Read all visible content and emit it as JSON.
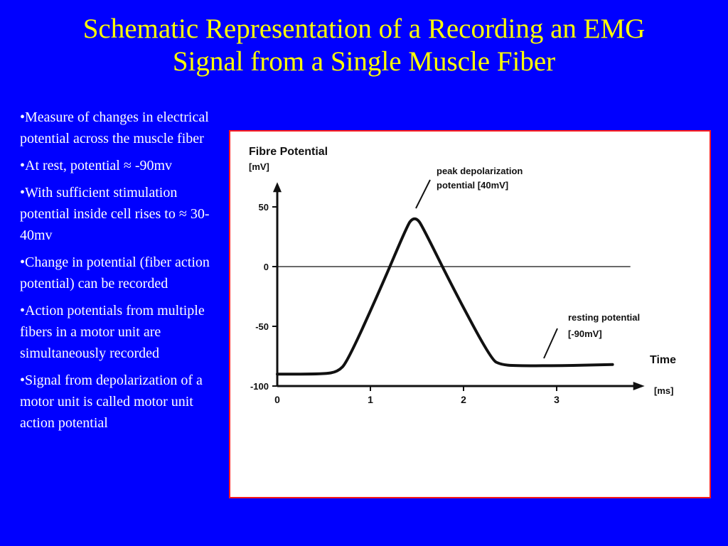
{
  "slide": {
    "title_line1": "Schematic Representation of a Recording an EMG",
    "title_line2": "Signal from a Single Muscle Fiber",
    "bullets": [
      "•Measure of changes in electrical potential across the muscle fiber",
      "•At rest, potential ≈ -90mv",
      "•With sufficient stimulation potential inside cell rises to ≈ 30-40mv",
      "•Change in potential (fiber action potential) can be recorded",
      "•Action potentials from multiple fibers in a motor unit are simultaneously recorded",
      "•Signal from depolarization of a motor unit is called motor unit action potential"
    ]
  },
  "colors": {
    "background": "#0000ff",
    "title": "#ffff00",
    "text": "#ffffff",
    "frame": "#ff1a1a"
  },
  "chart_data": {
    "type": "line",
    "title": "",
    "ylabel": "Fibre Potential",
    "ylabel_unit": "[mV]",
    "xlabel": "Time",
    "xlabel_unit": "[ms]",
    "xlim": [
      0,
      3.7
    ],
    "ylim": [
      -100,
      60
    ],
    "x_ticks": [
      0,
      1,
      2,
      3
    ],
    "y_ticks": [
      50,
      0,
      -50,
      -100
    ],
    "reference_line_y": 0,
    "series": [
      {
        "x": [
          0,
          0.5,
          0.65,
          0.75,
          1.1,
          1.4,
          1.45,
          1.5,
          1.55,
          1.9,
          2.3,
          2.4,
          2.55,
          3.0,
          3.6
        ],
        "y": [
          -90,
          -90,
          -88,
          -80,
          -20,
          35,
          40,
          40,
          35,
          -20,
          -78,
          -82,
          -83,
          -83,
          -82
        ]
      }
    ],
    "annotations": [
      {
        "text_line1": "peak depolarization",
        "text_line2": "potential [40mV]"
      },
      {
        "text_line1": "resting potential",
        "text_line2": "[-90mV]"
      }
    ]
  }
}
